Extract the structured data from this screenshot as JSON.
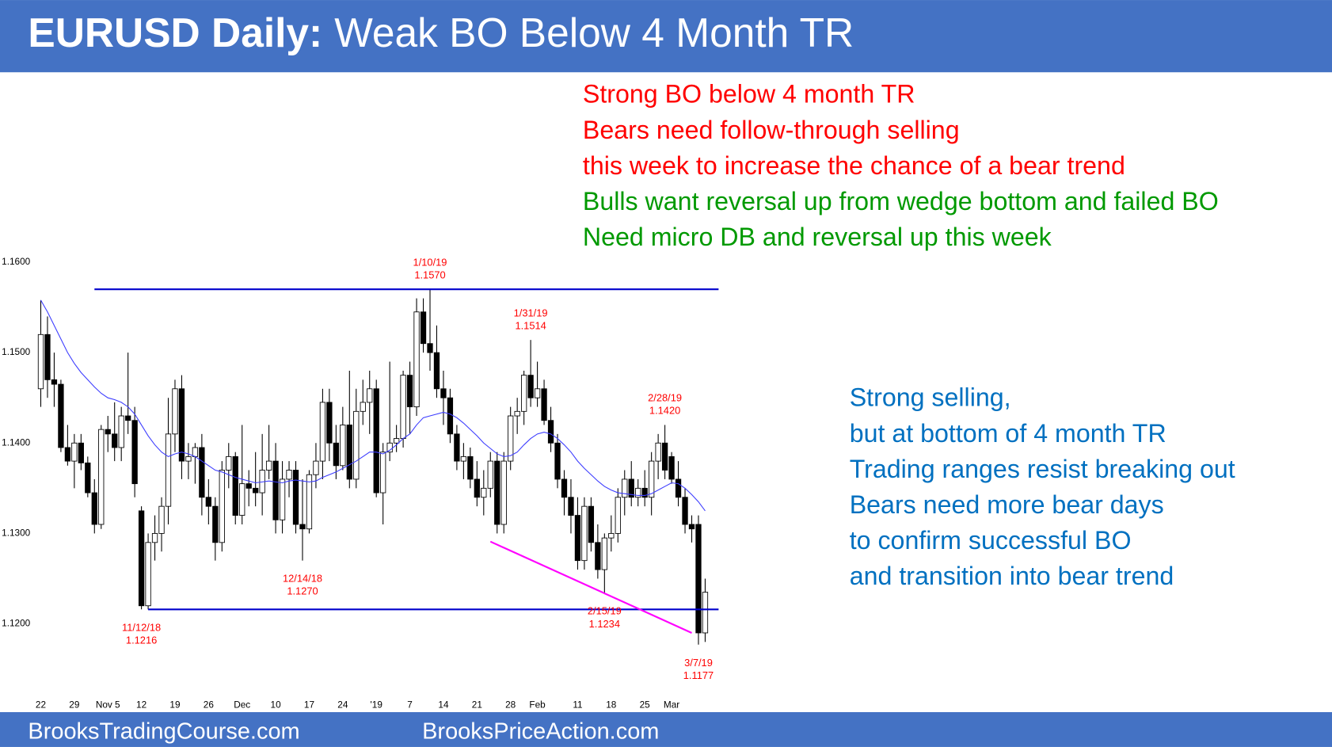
{
  "header": {
    "title_bold": "EURUSD Daily:",
    "title_rest": "Weak BO Below 4 Month TR"
  },
  "chart_data": {
    "type": "candlestick",
    "categories": [
      "22",
      null,
      null,
      null,
      null,
      "29",
      null,
      null,
      null,
      null,
      "Nov 5",
      null,
      null,
      null,
      null,
      "12",
      null,
      null,
      null,
      null,
      "19",
      null,
      null,
      null,
      null,
      "26",
      null,
      null,
      null,
      null,
      "Dec",
      null,
      null,
      null,
      null,
      "10",
      null,
      null,
      null,
      null,
      "17",
      null,
      null,
      null,
      null,
      "24",
      null,
      null,
      null,
      null,
      "'19",
      null,
      null,
      null,
      null,
      "7",
      null,
      null,
      null,
      null,
      "14",
      null,
      null,
      null,
      null,
      "21",
      null,
      null,
      null,
      null,
      "28",
      null,
      null,
      null,
      "Feb",
      null,
      null,
      null,
      null,
      null,
      "11",
      null,
      null,
      null,
      null,
      "18",
      null,
      null,
      null,
      null,
      "25",
      null,
      null,
      null,
      "Mar",
      null,
      null,
      null,
      null,
      null
    ],
    "open": [
      1.146,
      1.152,
      1.147,
      1.1465,
      1.1395,
      1.138,
      1.14,
      1.1378,
      1.1345,
      1.131,
      1.1415,
      1.141,
      1.1395,
      1.143,
      1.1425,
      1.1325,
      1.122,
      1.129,
      1.13,
      1.133,
      1.141,
      1.146,
      1.138,
      1.1385,
      1.1395,
      1.134,
      1.133,
      1.129,
      1.137,
      1.1385,
      1.132,
      1.1355,
      1.135,
      1.1345,
      1.137,
      1.138,
      1.1315,
      1.136,
      1.137,
      1.131,
      1.1305,
      1.1365,
      1.138,
      1.1445,
      1.14,
      1.1375,
      1.142,
      1.136,
      1.1435,
      1.1445,
      1.146,
      1.1345,
      1.139,
      1.14,
      1.1405,
      1.1475,
      1.144,
      1.1545,
      1.151,
      1.15,
      1.146,
      1.145,
      1.141,
      1.138,
      1.1385,
      1.136,
      1.134,
      1.135,
      1.138,
      1.131,
      1.138,
      1.143,
      1.1435,
      1.1475,
      1.145,
      1.146,
      1.1425,
      1.14,
      1.136,
      1.134,
      1.132,
      1.127,
      1.133,
      1.129,
      1.126,
      1.1295,
      1.13,
      1.134,
      1.136,
      1.134,
      1.135,
      1.134,
      1.138,
      1.14,
      1.1385,
      1.136,
      1.134,
      1.131,
      1.131,
      1.119
    ],
    "high": [
      1.1558,
      1.154,
      1.15,
      1.147,
      1.142,
      1.141,
      1.141,
      1.1385,
      1.136,
      1.142,
      1.143,
      1.1445,
      1.144,
      1.15,
      1.144,
      1.133,
      1.13,
      1.132,
      1.134,
      1.145,
      1.147,
      1.1475,
      1.14,
      1.14,
      1.141,
      1.136,
      1.134,
      1.138,
      1.14,
      1.139,
      1.142,
      1.137,
      1.139,
      1.141,
      1.142,
      1.14,
      1.138,
      1.138,
      1.138,
      1.136,
      1.137,
      1.14,
      1.146,
      1.146,
      1.142,
      1.144,
      1.148,
      1.146,
      1.147,
      1.148,
      1.147,
      1.14,
      1.149,
      1.142,
      1.148,
      1.149,
      1.156,
      1.156,
      1.157,
      1.153,
      1.148,
      1.146,
      1.142,
      1.14,
      1.1395,
      1.138,
      1.137,
      1.139,
      1.139,
      1.139,
      1.144,
      1.145,
      1.148,
      1.1514,
      1.149,
      1.147,
      1.144,
      1.141,
      1.137,
      1.136,
      1.134,
      1.134,
      1.134,
      1.131,
      1.13,
      1.132,
      1.135,
      1.137,
      1.138,
      1.136,
      1.137,
      1.139,
      1.141,
      1.142,
      1.139,
      1.138,
      1.135,
      1.132,
      1.132,
      1.125
    ],
    "low": [
      1.144,
      1.145,
      1.144,
      1.139,
      1.1375,
      1.135,
      1.137,
      1.134,
      1.13,
      1.1305,
      1.139,
      1.138,
      1.138,
      1.141,
      1.134,
      1.1216,
      1.1216,
      1.127,
      1.128,
      1.131,
      1.139,
      1.136,
      1.136,
      1.1355,
      1.132,
      1.131,
      1.127,
      1.128,
      1.135,
      1.131,
      1.131,
      1.133,
      1.133,
      1.132,
      1.136,
      1.13,
      1.13,
      1.134,
      1.13,
      1.127,
      1.13,
      1.135,
      1.136,
      1.138,
      1.136,
      1.137,
      1.135,
      1.135,
      1.142,
      1.141,
      1.134,
      1.131,
      1.138,
      1.139,
      1.1395,
      1.141,
      1.143,
      1.15,
      1.148,
      1.145,
      1.142,
      1.14,
      1.137,
      1.136,
      1.135,
      1.133,
      1.132,
      1.134,
      1.13,
      1.13,
      1.137,
      1.141,
      1.142,
      1.144,
      1.144,
      1.142,
      1.139,
      1.135,
      1.132,
      1.13,
      1.126,
      1.126,
      1.128,
      1.125,
      1.1234,
      1.128,
      1.129,
      1.132,
      1.133,
      1.133,
      1.133,
      1.132,
      1.136,
      1.136,
      1.1355,
      1.133,
      1.13,
      1.129,
      1.1177,
      1.118
    ],
    "close": [
      1.152,
      1.147,
      1.1465,
      1.1395,
      1.138,
      1.14,
      1.1378,
      1.1345,
      1.131,
      1.1415,
      1.141,
      1.1395,
      1.143,
      1.1425,
      1.1355,
      1.122,
      1.129,
      1.13,
      1.133,
      1.141,
      1.146,
      1.138,
      1.1385,
      1.1395,
      1.134,
      1.133,
      1.129,
      1.137,
      1.1385,
      1.132,
      1.1355,
      1.135,
      1.1345,
      1.137,
      1.138,
      1.1315,
      1.136,
      1.137,
      1.131,
      1.1305,
      1.1365,
      1.138,
      1.1445,
      1.14,
      1.1375,
      1.142,
      1.136,
      1.1435,
      1.1445,
      1.146,
      1.1345,
      1.139,
      1.14,
      1.1405,
      1.1475,
      1.144,
      1.1545,
      1.151,
      1.15,
      1.146,
      1.145,
      1.141,
      1.138,
      1.1385,
      1.136,
      1.134,
      1.135,
      1.138,
      1.131,
      1.138,
      1.143,
      1.1435,
      1.1475,
      1.145,
      1.146,
      1.1425,
      1.14,
      1.136,
      1.134,
      1.132,
      1.127,
      1.133,
      1.129,
      1.126,
      1.1295,
      1.13,
      1.134,
      1.136,
      1.134,
      1.135,
      1.134,
      1.138,
      1.14,
      1.137,
      1.136,
      1.134,
      1.131,
      1.1305,
      1.119,
      1.1235
    ],
    "moving_average": {
      "color": "#3c3cff",
      "values": [
        1.1558,
        1.1545,
        1.153,
        1.1515,
        1.15,
        1.1488,
        1.1478,
        1.147,
        1.1462,
        1.1455,
        1.145,
        1.1448,
        1.1445,
        1.144,
        1.1432,
        1.142,
        1.1408,
        1.1398,
        1.139,
        1.1385,
        1.1388,
        1.139,
        1.1388,
        1.1385,
        1.138,
        1.1375,
        1.137,
        1.1368,
        1.1365,
        1.1362,
        1.136,
        1.1358,
        1.1356,
        1.1357,
        1.1358,
        1.1357,
        1.1356,
        1.1358,
        1.1359,
        1.1358,
        1.1357,
        1.1358,
        1.1362,
        1.1365,
        1.1368,
        1.1372,
        1.1376,
        1.138,
        1.1385,
        1.139,
        1.139,
        1.1388,
        1.1392,
        1.1398,
        1.1405,
        1.141,
        1.142,
        1.1428,
        1.143,
        1.1432,
        1.1434,
        1.1432,
        1.1428,
        1.1422,
        1.1415,
        1.1408,
        1.14,
        1.1394,
        1.1388,
        1.1385,
        1.1386,
        1.139,
        1.1398,
        1.1405,
        1.141,
        1.1412,
        1.141,
        1.1405,
        1.1398,
        1.139,
        1.138,
        1.1372,
        1.1365,
        1.1358,
        1.1352,
        1.1348,
        1.1345,
        1.1344,
        1.1343,
        1.1342,
        1.1342,
        1.1344,
        1.1348,
        1.1352,
        1.1356,
        1.1355,
        1.135,
        1.1343,
        1.1335,
        1.1325
      ]
    },
    "up_color": "#ffffff",
    "down_color": "#000000",
    "ylim": [
      1.1124,
      1.1608
    ],
    "yticks": [
      {
        "value": 1.12,
        "label": "1.1200"
      },
      {
        "value": 1.13,
        "label": "1.1300"
      },
      {
        "value": 1.14,
        "label": "1.1400"
      },
      {
        "value": 1.15,
        "label": "1.1500"
      },
      {
        "value": 1.16,
        "label": "1.1600"
      }
    ],
    "grid": false,
    "lines": [
      {
        "color": "#0000cc",
        "x": [
          8,
          101
        ],
        "y": [
          1.157,
          1.157
        ]
      },
      {
        "color": "#0000cc",
        "x": [
          16,
          101
        ],
        "y": [
          1.1216,
          1.1216
        ]
      },
      {
        "color": "#ff00ff",
        "x": [
          67,
          97
        ],
        "y": [
          1.1291,
          1.119
        ]
      }
    ],
    "annotations": [
      {
        "date": "1/10/19",
        "price": {
          "value": 1.157,
          "label": "1.1570"
        },
        "candle": 58
      },
      {
        "date": "1/31/19",
        "price": {
          "value": 1.1514,
          "label": "1.1514"
        },
        "candle": 73
      },
      {
        "date": "2/28/19",
        "price": {
          "value": 1.142,
          "label": "1.1420"
        },
        "candle": 93
      },
      {
        "date": "11/12/18",
        "price": {
          "value": 1.1216,
          "label": "1.1216"
        },
        "candle": 15
      },
      {
        "date": "12/14/18",
        "price": {
          "value": 1.127,
          "label": "1.1270"
        },
        "candle": 39
      },
      {
        "date": "2/15/19",
        "price": {
          "value": 1.1234,
          "label": "1.1234"
        },
        "candle": 84
      },
      {
        "date": "3/7/19",
        "price": {
          "value": 1.1177,
          "label": "1.1177"
        },
        "candle": 98
      }
    ],
    "annotation_color": "#ff0000"
  },
  "notes": {
    "red": {
      "color": "#ff0000",
      "lines": [
        "Strong BO below 4 month TR",
        "Bears need follow-through selling",
        "this week to increase the chance of a bear trend"
      ]
    },
    "green": {
      "color": "#009900",
      "lines": [
        "Bulls want reversal up from wedge bottom and failed BO",
        "Need micro DB and reversal up this week"
      ]
    },
    "blue": {
      "color": "#0070c0",
      "lines": [
        "Strong selling,",
        "but at bottom of 4 month TR",
        "Trading ranges resist breaking out",
        "Bears need more bear days",
        "to confirm successful BO",
        "and transition into bear trend"
      ]
    }
  },
  "footer": {
    "left": "BrooksTradingCourse.com",
    "right": "BrooksPriceAction.com"
  }
}
